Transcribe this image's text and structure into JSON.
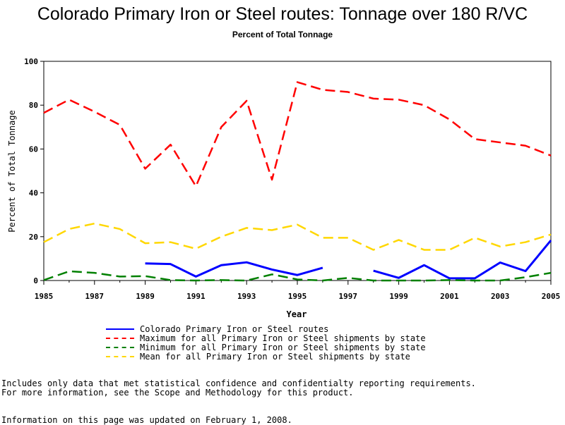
{
  "page": {
    "title": "Colorado Primary Iron or Steel routes: Tonnage over 180 R/VC",
    "subtitle": "Percent of Total Tonnage",
    "notes": [
      "Includes only data that met statistical confidence and confidentialty reporting requirements.",
      "For more information, see the Scope and Methodology for this product.",
      "Information on this page was updated on February 1, 2008."
    ]
  },
  "chart_data": {
    "type": "line",
    "xlabel": "Year",
    "ylabel": "Percent of Total Tonnage",
    "xlim": [
      1985,
      2005
    ],
    "ylim": [
      0,
      100
    ],
    "xticks": [
      1985,
      1987,
      1989,
      1991,
      1993,
      1995,
      1997,
      1999,
      2001,
      2003,
      2005
    ],
    "yticks": [
      0,
      20,
      40,
      60,
      80,
      100
    ],
    "grid": false,
    "legend_position": "bottom",
    "x": [
      1985,
      1986,
      1987,
      1988,
      1989,
      1990,
      1991,
      1992,
      1993,
      1994,
      1995,
      1996,
      1997,
      1998,
      1999,
      2000,
      2001,
      2002,
      2003,
      2004,
      2005
    ],
    "series": [
      {
        "name": "Colorado Primary Iron or Steel routes",
        "color": "#0000ff",
        "style": "solid",
        "values": [
          null,
          null,
          null,
          null,
          7.8,
          7.5,
          1.8,
          7.0,
          8.3,
          5.0,
          2.5,
          5.8,
          null,
          4.5,
          1.2,
          7.0,
          1.0,
          1.0,
          8.2,
          4.3,
          18.3
        ]
      },
      {
        "name": "Maximum for all Primary Iron or Steel shipments by state",
        "color": "#ff0000",
        "style": "dashed",
        "values": [
          76.5,
          82.5,
          77.0,
          71.0,
          51.0,
          62.0,
          43.0,
          70.0,
          82.0,
          46.0,
          90.5,
          87.0,
          86.0,
          83.0,
          82.5,
          80.0,
          73.5,
          64.5,
          63.0,
          61.5,
          57.0
        ]
      },
      {
        "name": "Minimum for all Primary Iron or Steel shipments by state",
        "color": "#008000",
        "style": "dashed",
        "values": [
          0.2,
          4.2,
          3.5,
          1.8,
          2.0,
          0.2,
          0.0,
          0.2,
          0.0,
          2.8,
          0.5,
          0.0,
          1.2,
          0.0,
          0.0,
          0.0,
          0.2,
          0.0,
          0.0,
          1.5,
          3.5
        ]
      },
      {
        "name": "Mean for all Primary Iron or Steel shipments by state",
        "color": "#ffd700",
        "style": "dashed",
        "values": [
          17.5,
          23.5,
          26.0,
          23.5,
          17.0,
          17.5,
          14.5,
          20.0,
          24.0,
          23.0,
          25.5,
          19.5,
          19.5,
          14.0,
          18.5,
          14.0,
          14.0,
          19.5,
          15.5,
          17.5,
          21.0
        ]
      }
    ]
  }
}
